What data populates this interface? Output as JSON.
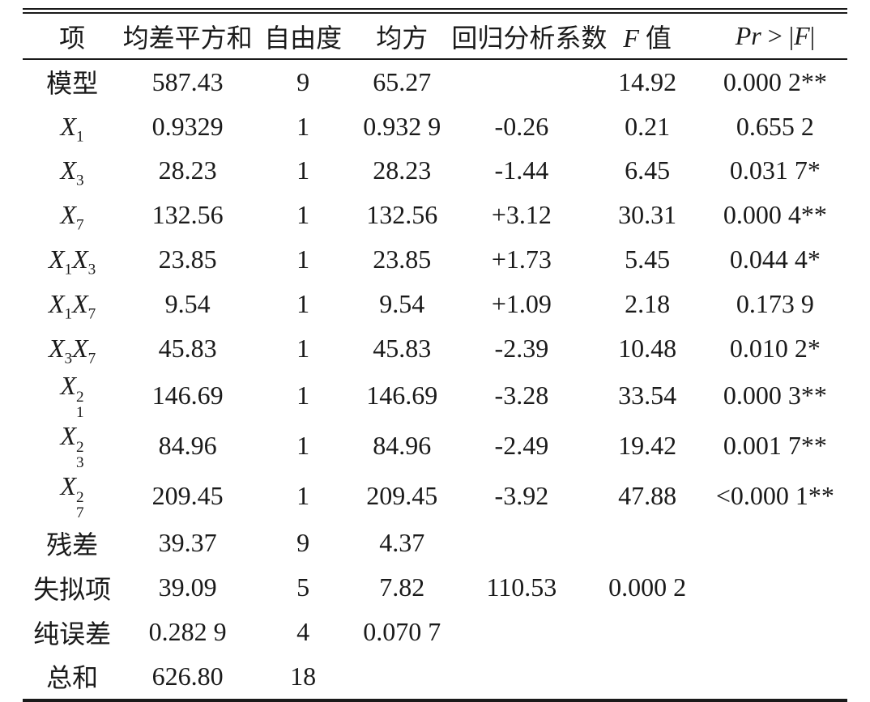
{
  "colors": {
    "text": "#1a1a1a",
    "rule": "#1a1a1a",
    "background": "#ffffff"
  },
  "table": {
    "header": [
      {
        "name": "item",
        "parts": [
          [
            "t",
            "项"
          ]
        ]
      },
      {
        "name": "sum-of-squares",
        "parts": [
          [
            "t",
            "均差平方和"
          ]
        ]
      },
      {
        "name": "degrees-of-freedom",
        "parts": [
          [
            "t",
            "自由度"
          ]
        ]
      },
      {
        "name": "mean-square",
        "parts": [
          [
            "t",
            "均方"
          ]
        ]
      },
      {
        "name": "regression-coefficient",
        "parts": [
          [
            "t",
            "回归分析系数"
          ]
        ]
      },
      {
        "name": "f-value",
        "parts": [
          [
            "it",
            "F"
          ],
          [
            "t",
            " 值"
          ]
        ]
      },
      {
        "name": "pr-gt-abs-f",
        "parts": [
          [
            "it",
            "Pr"
          ],
          [
            "t",
            " > |"
          ],
          [
            "it",
            "F"
          ],
          [
            "t",
            "|"
          ]
        ]
      }
    ],
    "rows": [
      {
        "item": [
          [
            "t",
            "模型"
          ]
        ],
        "cells": [
          "587.43",
          "9",
          "65.27",
          "",
          "14.92",
          "0.000 2**"
        ]
      },
      {
        "item": [
          [
            "it",
            "X"
          ],
          [
            "sub",
            "1"
          ]
        ],
        "cells": [
          "0.9329",
          "1",
          "0.932 9",
          "-0.26",
          "0.21",
          "0.655 2"
        ]
      },
      {
        "item": [
          [
            "it",
            "X"
          ],
          [
            "sub",
            "3"
          ]
        ],
        "cells": [
          "28.23",
          "1",
          "28.23",
          "-1.44",
          "6.45",
          "0.031 7*"
        ]
      },
      {
        "item": [
          [
            "it",
            "X"
          ],
          [
            "sub",
            "7"
          ]
        ],
        "cells": [
          "132.56",
          "1",
          "132.56",
          "+3.12",
          "30.31",
          "0.000 4**"
        ]
      },
      {
        "item": [
          [
            "it",
            "X"
          ],
          [
            "sub",
            "1"
          ],
          [
            "it",
            "X"
          ],
          [
            "sub",
            "3"
          ]
        ],
        "cells": [
          "23.85",
          "1",
          "23.85",
          "+1.73",
          "5.45",
          "0.044 4*"
        ]
      },
      {
        "item": [
          [
            "it",
            "X"
          ],
          [
            "sub",
            "1"
          ],
          [
            "it",
            "X"
          ],
          [
            "sub",
            "7"
          ]
        ],
        "cells": [
          "9.54",
          "1",
          "9.54",
          "+1.09",
          "2.18",
          "0.173 9"
        ]
      },
      {
        "item": [
          [
            "it",
            "X"
          ],
          [
            "sub",
            "3"
          ],
          [
            "it",
            "X"
          ],
          [
            "sub",
            "7"
          ]
        ],
        "cells": [
          "45.83",
          "1",
          "45.83",
          "-2.39",
          "10.48",
          "0.010 2*"
        ]
      },
      {
        "item": [
          [
            "it",
            "X"
          ],
          [
            "subsup",
            "1",
            "2"
          ]
        ],
        "cells": [
          "146.69",
          "1",
          "146.69",
          "-3.28",
          "33.54",
          "0.000 3**"
        ]
      },
      {
        "item": [
          [
            "it",
            "X"
          ],
          [
            "subsup",
            "3",
            "2"
          ]
        ],
        "cells": [
          "84.96",
          "1",
          "84.96",
          "-2.49",
          "19.42",
          "0.001 7**"
        ]
      },
      {
        "item": [
          [
            "it",
            "X"
          ],
          [
            "subsup",
            "7",
            "2"
          ]
        ],
        "cells": [
          "209.45",
          "1",
          "209.45",
          "-3.92",
          "47.88",
          "<0.000 1**"
        ]
      },
      {
        "item": [
          [
            "t",
            "残差"
          ]
        ],
        "cells": [
          "39.37",
          "9",
          "4.37",
          "",
          "",
          ""
        ]
      },
      {
        "item": [
          [
            "t",
            "失拟项"
          ]
        ],
        "cells": [
          "39.09",
          "5",
          "7.82",
          "110.53",
          "0.000 2",
          ""
        ]
      },
      {
        "item": [
          [
            "t",
            "纯误差"
          ]
        ],
        "cells": [
          "0.282 9",
          "4",
          "0.070 7",
          "",
          "",
          ""
        ]
      },
      {
        "item": [
          [
            "t",
            "总和"
          ]
        ],
        "cells": [
          "626.80",
          "18",
          "",
          "",
          "",
          ""
        ]
      }
    ]
  }
}
